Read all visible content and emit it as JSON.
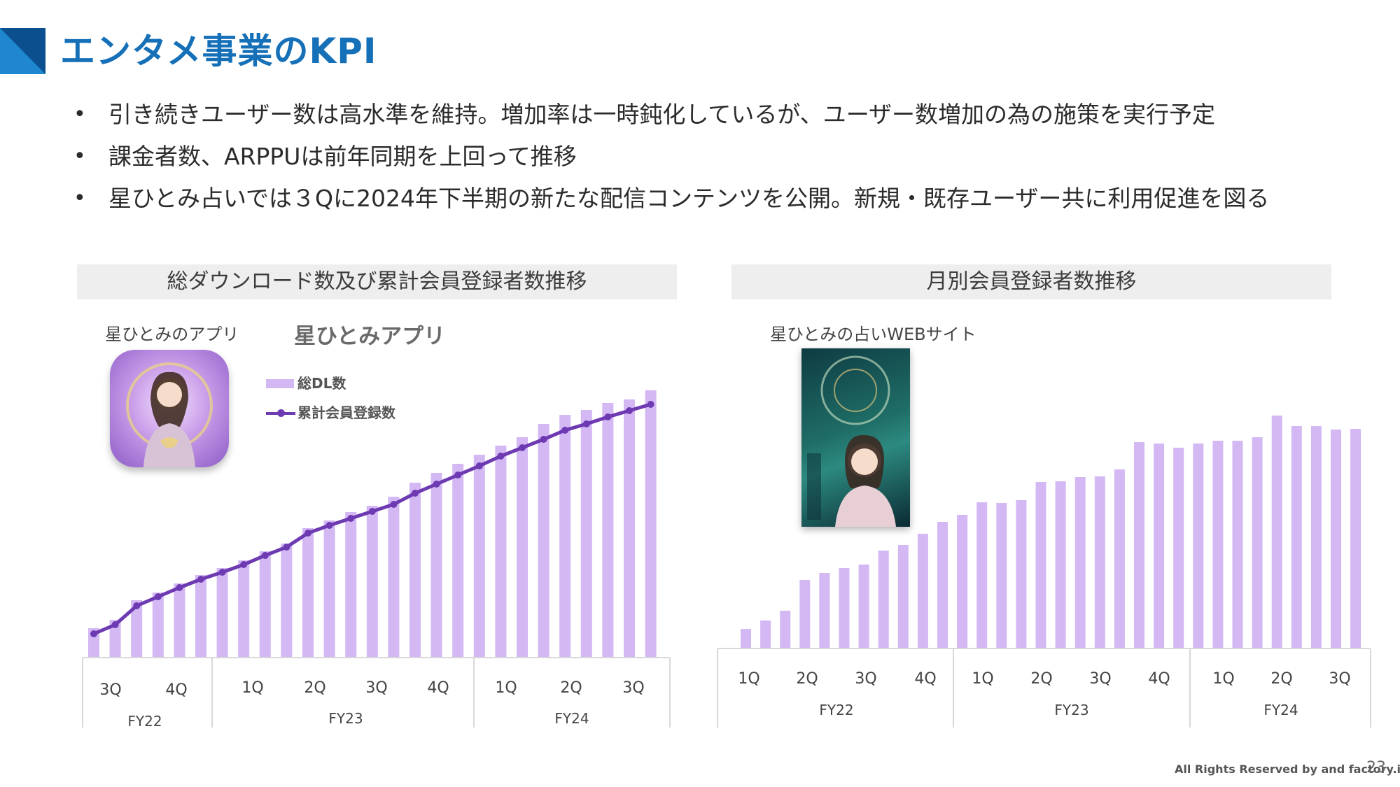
{
  "page": {
    "title": "エンタメ事業のKPI",
    "accent_color": "#1670b8",
    "bullets": [
      "引き続きユーザー数は高水準を維持。増加率は一時鈍化しているが、ユーザー数増加の為の施策を実行予定",
      "課金者数、ARPPUは前年同期を上回って推移",
      "星ひとみ占いでは３Qに2024年下半期の新たな配信コンテンツを公開。新規・既存ユーザー共に利用促進を図る"
    ],
    "bullet_marker": "•",
    "footer": "All Rights Reserved by and factory.inc",
    "page_number": "23"
  },
  "left_panel": {
    "header": "総ダウンロード数及び累計会員登録者数推移",
    "app_label": "星ひとみのアプリ",
    "app_title": "星ひとみアプリ",
    "legend": {
      "bars": "総DL数",
      "line": "累計会員登録数"
    }
  },
  "right_panel": {
    "header": "月別会員登録者数推移",
    "web_label": "星ひとみの占いWEBサイト"
  },
  "chart_data": [
    {
      "type": "bar",
      "title": "総ダウンロード数及び累計会員登録者数推移",
      "x": [
        1,
        2,
        3,
        4,
        5,
        6,
        7,
        8,
        9,
        10,
        11,
        12,
        13,
        14,
        15,
        16,
        17,
        18,
        19,
        20,
        21,
        22,
        23,
        24,
        25,
        26,
        27
      ],
      "series": [
        {
          "name": "総DL数",
          "type": "bar",
          "color": "#d3b8f4",
          "values": [
            42,
            54,
            82,
            93,
            106,
            118,
            128,
            139,
            152,
            163,
            185,
            196,
            208,
            217,
            230,
            250,
            264,
            277,
            290,
            303,
            315,
            334,
            347,
            354,
            364,
            369,
            382
          ]
        },
        {
          "name": "累計会員登録数",
          "type": "line",
          "color": "#6d3ab2",
          "values": [
            34,
            47,
            74,
            87,
            100,
            112,
            122,
            133,
            146,
            158,
            178,
            189,
            199,
            209,
            219,
            235,
            248,
            261,
            274,
            288,
            300,
            312,
            325,
            334,
            344,
            353,
            362
          ]
        }
      ],
      "quarters": [
        "3Q",
        "4Q",
        "1Q",
        "2Q",
        "3Q",
        "4Q",
        "1Q",
        "2Q",
        "3Q"
      ],
      "fiscal_years": [
        "FY22",
        "FY23",
        "FY24"
      ],
      "ylim": [
        0,
        400
      ],
      "grid": false
    },
    {
      "type": "bar",
      "title": "月別会員登録者数推移",
      "x": [
        1,
        2,
        3,
        4,
        5,
        6,
        7,
        8,
        9,
        10,
        11,
        12,
        13,
        14,
        15,
        16,
        17,
        18,
        19,
        20,
        21,
        22,
        23,
        24,
        25,
        26,
        27,
        28,
        29,
        30,
        31,
        32,
        33
      ],
      "series": [
        {
          "name": "",
          "type": "bar",
          "color": "#d3b8f4",
          "values": [
            28,
            40,
            54,
            98,
            108,
            115,
            120,
            140,
            148,
            164,
            181,
            191,
            209,
            208,
            212,
            238,
            239,
            245,
            246,
            256,
            295,
            293,
            287,
            293,
            297,
            297,
            302,
            333,
            318,
            318,
            313,
            314,
            0
          ]
        }
      ],
      "quarters": [
        "1Q",
        "2Q",
        "3Q",
        "4Q",
        "1Q",
        "2Q",
        "3Q",
        "4Q",
        "1Q",
        "2Q",
        "3Q"
      ],
      "fiscal_years": [
        "FY22",
        "FY23",
        "FY24"
      ],
      "ylim": [
        0,
        400
      ],
      "grid": false
    }
  ]
}
